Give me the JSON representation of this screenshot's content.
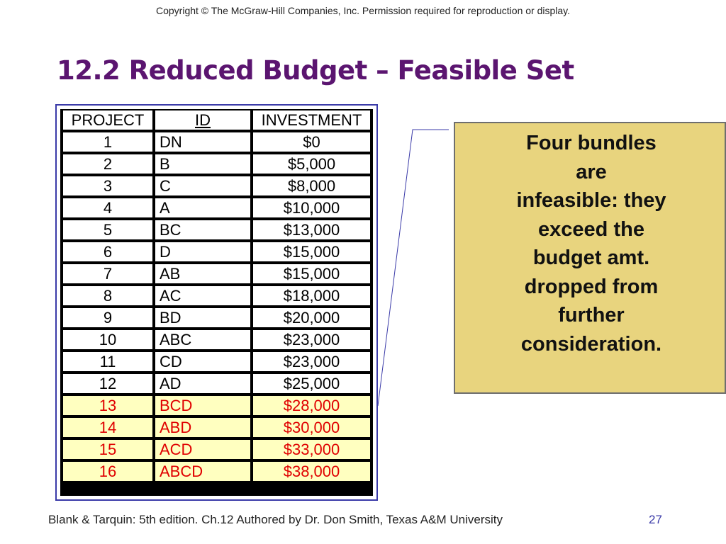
{
  "copyright": "Copyright © The McGraw-Hill Companies, Inc. Permission required for reproduction or display.",
  "title": "12.2 Reduced Budget – Feasible Set",
  "table": {
    "headers": [
      "PROJECT",
      "ID",
      "INVESTMENT"
    ],
    "rows": [
      {
        "project": "1",
        "id": "DN",
        "investment": "$0",
        "infeasible": false
      },
      {
        "project": "2",
        "id": "B",
        "investment": "$5,000",
        "infeasible": false
      },
      {
        "project": "3",
        "id": "C",
        "investment": "$8,000",
        "infeasible": false
      },
      {
        "project": "4",
        "id": "A",
        "investment": "$10,000",
        "infeasible": false
      },
      {
        "project": "5",
        "id": "BC",
        "investment": "$13,000",
        "infeasible": false
      },
      {
        "project": "6",
        "id": "D",
        "investment": "$15,000",
        "infeasible": false
      },
      {
        "project": "7",
        "id": "AB",
        "investment": "$15,000",
        "infeasible": false
      },
      {
        "project": "8",
        "id": "AC",
        "investment": "$18,000",
        "infeasible": false
      },
      {
        "project": "9",
        "id": "BD",
        "investment": "$20,000",
        "infeasible": false
      },
      {
        "project": "10",
        "id": "ABC",
        "investment": "$23,000",
        "infeasible": false
      },
      {
        "project": "11",
        "id": "CD",
        "investment": "$23,000",
        "infeasible": false
      },
      {
        "project": "12",
        "id": "AD",
        "investment": "$25,000",
        "infeasible": false
      },
      {
        "project": "13",
        "id": "BCD",
        "investment": "$28,000",
        "infeasible": true
      },
      {
        "project": "14",
        "id": "ABD",
        "investment": "$30,000",
        "infeasible": true
      },
      {
        "project": "15",
        "id": "ACD",
        "investment": "$33,000",
        "infeasible": true
      },
      {
        "project": "16",
        "id": "ABCD",
        "investment": "$38,000",
        "infeasible": true
      }
    ]
  },
  "callout": {
    "lines": [
      "Four bundles",
      "are",
      "infeasible: they",
      "exceed the",
      "budget amt.",
      "dropped from",
      "further",
      "consideration."
    ]
  },
  "footer": {
    "text": "Blank & Tarquin: 5th edition. Ch.12 Authored by Dr. Don Smith, Texas A&M University",
    "page": "27"
  },
  "colors": {
    "title": "#5b1570",
    "infeasible_text": "#e00000",
    "infeasible_fill": "#ffffc0",
    "callout_fill": "#e8d47e",
    "accent": "#3a3aa8"
  }
}
